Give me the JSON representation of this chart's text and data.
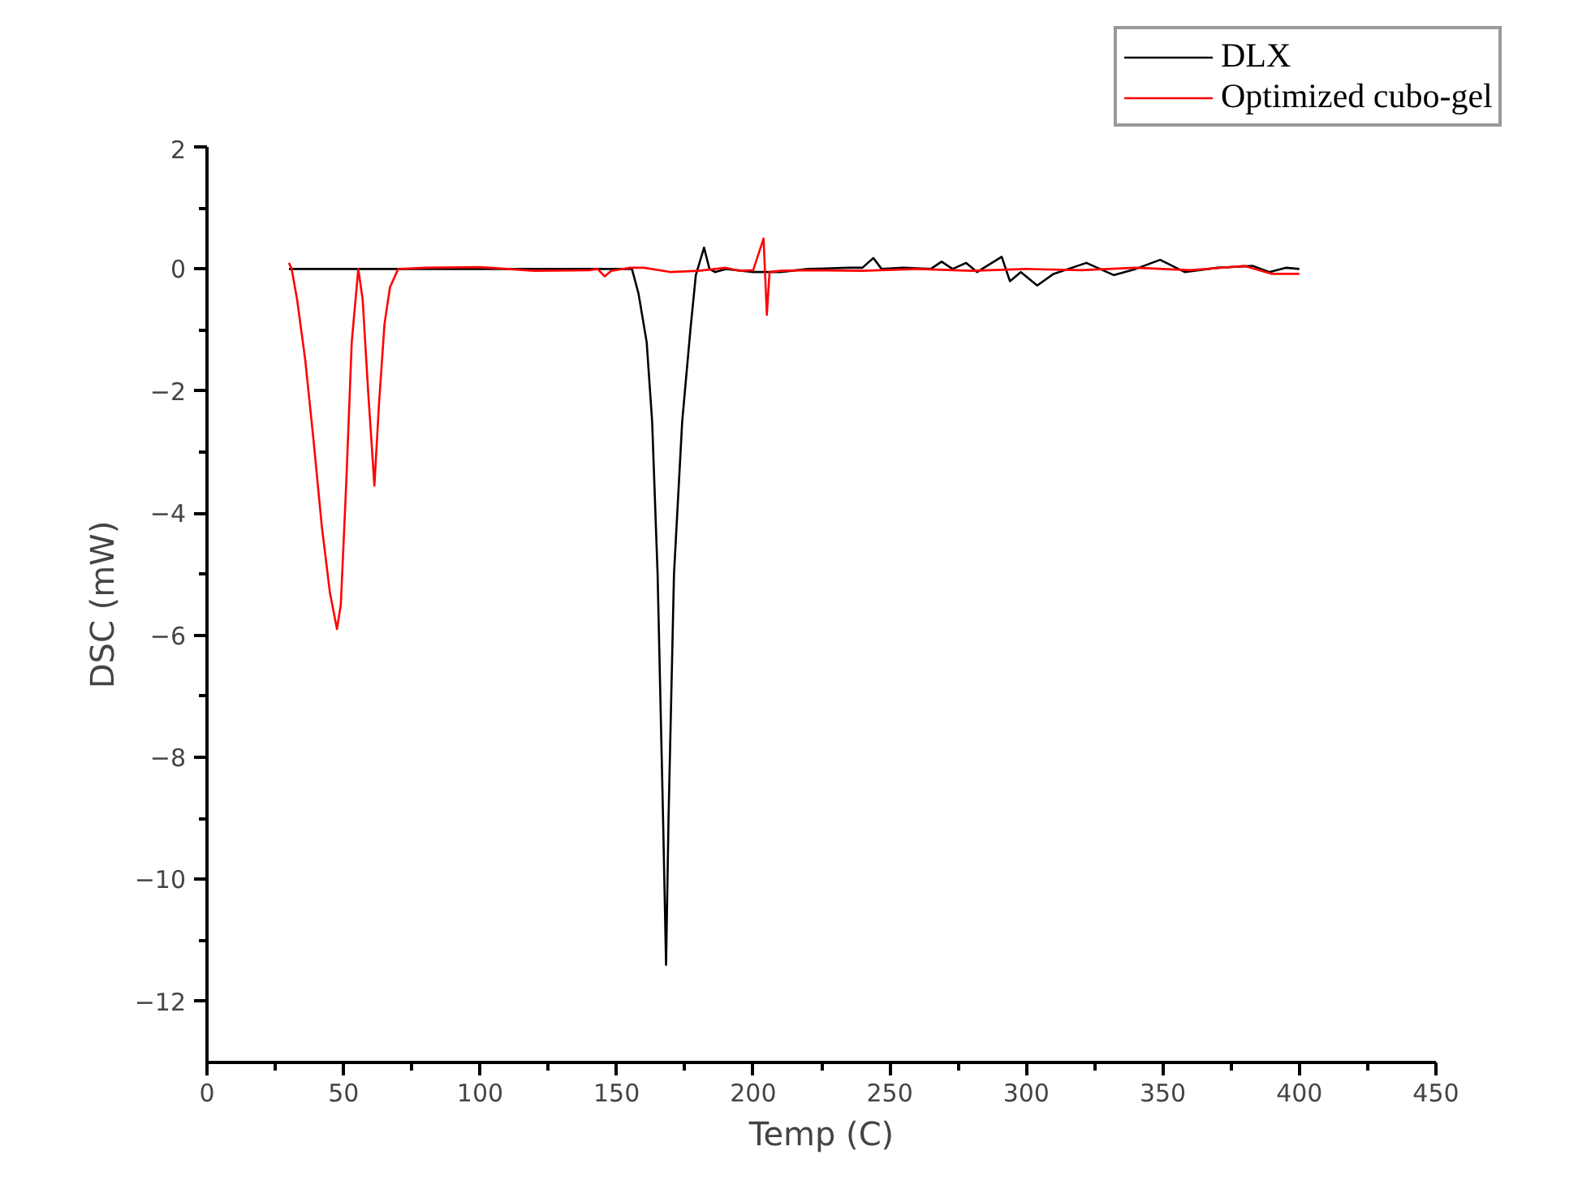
{
  "chart_data": {
    "type": "line",
    "xlabel": "Temp (C)",
    "ylabel": "DSC (mW)",
    "xlim": [
      0,
      450
    ],
    "ylim": [
      -13,
      2
    ],
    "xticks": [
      0,
      50,
      100,
      150,
      200,
      250,
      300,
      350,
      400,
      450
    ],
    "yticks": [
      -12,
      -10,
      -8,
      -6,
      -4,
      -2,
      0,
      2
    ],
    "grid": false,
    "legend": "top right",
    "marker": "none",
    "line_style": "solid",
    "series": [
      {
        "name": "DLX",
        "color": "#000000",
        "x": [
          30,
          100,
          150,
          155.6,
          158,
          161,
          163,
          165,
          167,
          168.1,
          169,
          171,
          174,
          177,
          179,
          182,
          184,
          186,
          190,
          200,
          210,
          220,
          235,
          240,
          244,
          247,
          255,
          265,
          269,
          273,
          278,
          282,
          291,
          294,
          298,
          304,
          310,
          322,
          332,
          340,
          349,
          358,
          370,
          383,
          389,
          395,
          400
        ],
        "values": [
          0,
          0,
          0,
          0,
          -0.4,
          -1.2,
          -2.5,
          -5,
          -9,
          -11.4,
          -9,
          -5,
          -2.5,
          -1,
          -0.1,
          0.35,
          0,
          -0.05,
          0,
          -0.05,
          -0.05,
          0,
          0.02,
          0.02,
          0.18,
          0,
          0.02,
          0,
          0.12,
          0,
          0.1,
          -0.05,
          0.2,
          -0.2,
          -0.05,
          -0.27,
          -0.08,
          0.1,
          -0.1,
          0,
          0.15,
          -0.05,
          0.02,
          0.05,
          -0.05,
          0.02,
          0
        ]
      },
      {
        "name": "Optimized cubo-gel",
        "color": "#ff0000",
        "x": [
          30,
          31,
          33,
          36,
          39,
          42,
          45,
          47.6,
          49,
          51,
          53,
          55.4,
          57,
          59,
          61.3,
          63,
          65,
          67,
          70,
          80,
          100,
          120,
          140,
          143,
          145.6,
          148,
          155,
          160,
          170,
          180,
          190,
          195,
          200,
          203.8,
          205,
          206,
          210,
          220,
          240,
          260,
          280,
          300,
          320,
          340,
          360,
          380,
          390,
          400
        ],
        "values": [
          0.1,
          0,
          -0.5,
          -1.5,
          -2.8,
          -4.2,
          -5.3,
          -5.9,
          -5.5,
          -3.5,
          -1.2,
          0,
          -0.5,
          -2,
          -3.55,
          -2.2,
          -0.9,
          -0.3,
          0,
          0.02,
          0.03,
          -0.03,
          -0.02,
          0,
          -0.12,
          -0.03,
          0.02,
          0.02,
          -0.05,
          -0.03,
          0.02,
          -0.03,
          -0.02,
          0.5,
          -0.75,
          -0.05,
          -0.03,
          -0.02,
          -0.03,
          0,
          -0.03,
          0,
          -0.02,
          0.02,
          -0.02,
          0.05,
          -0.08,
          -0.08
        ]
      }
    ]
  }
}
